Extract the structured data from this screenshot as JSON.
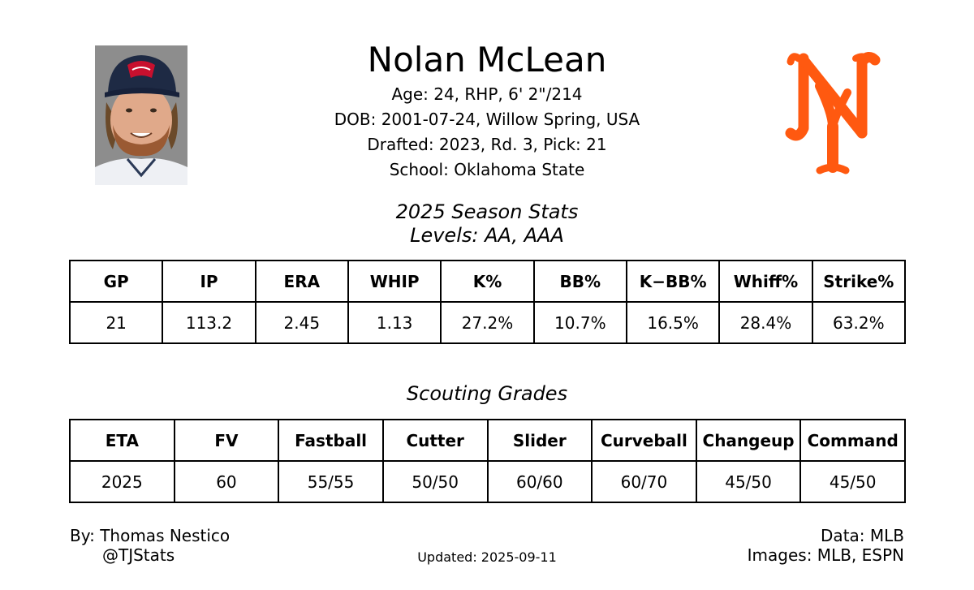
{
  "player": {
    "name": "Nolan McLean",
    "bio_lines": [
      "Age: 24, RHP, 6' 2\"/214",
      "DOB: 2001-07-24, Willow Spring, USA",
      "Drafted: 2023, Rd. 3, Pick: 21",
      "School: Oklahoma State"
    ]
  },
  "team": {
    "logo_icon": "new-york-mets-ny-logo",
    "logo_color": "#FF5910"
  },
  "season_stats": {
    "title": "2025 Season Stats",
    "subtitle": "Levels: AA, AAA",
    "headers": [
      "GP",
      "IP",
      "ERA",
      "WHIP",
      "K%",
      "BB%",
      "K−BB%",
      "Whiff%",
      "Strike%"
    ],
    "values": [
      "21",
      "113.2",
      "2.45",
      "1.13",
      "27.2%",
      "10.7%",
      "16.5%",
      "28.4%",
      "63.2%"
    ]
  },
  "scouting": {
    "title": "Scouting Grades",
    "headers": [
      "ETA",
      "FV",
      "Fastball",
      "Cutter",
      "Slider",
      "Curveball",
      "Changeup",
      "Command"
    ],
    "values": [
      "2025",
      "60",
      "55/55",
      "50/50",
      "60/60",
      "60/70",
      "45/50",
      "45/50"
    ]
  },
  "footer": {
    "author": "By: Thomas Nestico",
    "handle": "@TJStats",
    "updated": "Updated: 2025-09-11",
    "data_source": "Data: MLB",
    "images_source": "Images: MLB, ESPN"
  }
}
